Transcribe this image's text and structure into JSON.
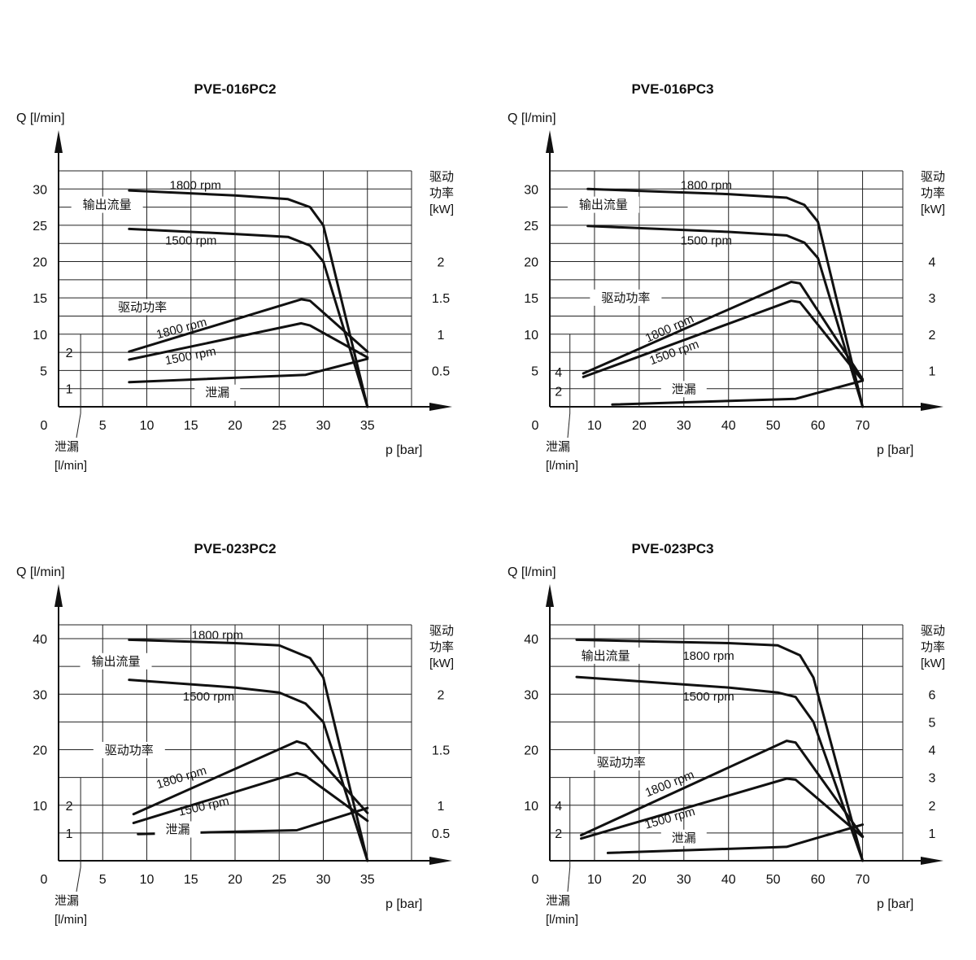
{
  "chart_data": [
    {
      "type": "line",
      "title": "PVE-016PC2",
      "ylabel": "Q [l/min]",
      "xlabel": "p [bar]",
      "right_label": [
        "驱动",
        "功率",
        "[kW]"
      ],
      "leak_label": [
        "泄漏",
        "[l/min]"
      ],
      "xlim": [
        0,
        40
      ],
      "ylim": [
        0,
        32.5
      ],
      "x_grid": [
        5,
        10,
        15,
        20,
        25,
        30,
        35,
        40
      ],
      "y_grid": [
        2.5,
        5,
        7.5,
        10,
        12.5,
        15,
        17.5,
        20,
        22.5,
        25,
        27.5,
        30,
        32.5
      ],
      "x_ticks": [
        {
          "v": 0,
          "t": "0"
        },
        {
          "v": 5,
          "t": "5"
        },
        {
          "v": 10,
          "t": "10"
        },
        {
          "v": 15,
          "t": "15"
        },
        {
          "v": 20,
          "t": "20"
        },
        {
          "v": 25,
          "t": "25"
        },
        {
          "v": 30,
          "t": "30"
        },
        {
          "v": 35,
          "t": "35"
        }
      ],
      "y_ticks": [
        {
          "v": 5,
          "t": "5"
        },
        {
          "v": 10,
          "t": "10"
        },
        {
          "v": 15,
          "t": "15"
        },
        {
          "v": 20,
          "t": "20"
        },
        {
          "v": 25,
          "t": "25"
        },
        {
          "v": 30,
          "t": "30"
        }
      ],
      "power_ticks": [
        {
          "v": 5,
          "t": "0.5"
        },
        {
          "v": 10,
          "t": "1"
        },
        {
          "v": 15,
          "t": "1.5"
        },
        {
          "v": 20,
          "t": "2"
        }
      ],
      "leak_ticks": [
        {
          "v": 2.5,
          "t": "1"
        },
        {
          "v": 7.5,
          "t": "2"
        }
      ],
      "leak_box": {
        "x": 2.5,
        "y": 10
      },
      "series": [
        {
          "name": "1800 rpm",
          "kind": "flow",
          "points": [
            [
              8,
              29.8
            ],
            [
              20,
              29.1
            ],
            [
              26,
              28.6
            ],
            [
              28.5,
              27.5
            ],
            [
              30,
              25
            ],
            [
              35,
              0
            ]
          ]
        },
        {
          "name": "1500 rpm",
          "kind": "flow",
          "points": [
            [
              8,
              24.5
            ],
            [
              20,
              23.8
            ],
            [
              26,
              23.4
            ],
            [
              28.5,
              22.2
            ],
            [
              30,
              20
            ],
            [
              35,
              0
            ]
          ]
        },
        {
          "name": "1800 rpm",
          "kind": "power",
          "points": [
            [
              8,
              7.6
            ],
            [
              27.5,
              14.8
            ],
            [
              28.5,
              14.6
            ],
            [
              35,
              7.6
            ]
          ]
        },
        {
          "name": "1500 rpm",
          "kind": "power",
          "points": [
            [
              8,
              6.5
            ],
            [
              27.5,
              11.5
            ],
            [
              28.5,
              11.2
            ],
            [
              35,
              6.8
            ]
          ]
        },
        {
          "name": "泄漏",
          "kind": "leak",
          "points": [
            [
              8,
              3.4
            ],
            [
              28,
              4.4
            ],
            [
              35,
              6.6
            ]
          ]
        }
      ],
      "annotations": [
        {
          "text": "1800 rpm",
          "x": 15.5,
          "y": 30.2,
          "rot": 0
        },
        {
          "text": "输出流量",
          "x": 5.5,
          "y": 27.5,
          "rot": 0,
          "mask": true
        },
        {
          "text": "1500 rpm",
          "x": 15,
          "y": 22.6,
          "rot": 0
        },
        {
          "text": "驱动功率",
          "x": 9.5,
          "y": 13.4,
          "rot": 0,
          "mask": true
        },
        {
          "text": "1800 rpm",
          "x": 14,
          "y": 10.5,
          "rot": -15
        },
        {
          "text": "1500 rpm",
          "x": 15,
          "y": 6.7,
          "rot": -11
        },
        {
          "text": "泄漏",
          "x": 18,
          "y": 1.6,
          "rot": 0,
          "mask": true
        }
      ]
    },
    {
      "type": "line",
      "title": "PVE-016PC3",
      "ylabel": "Q [l/min]",
      "xlabel": "p [bar]",
      "right_label": [
        "驱动",
        "功率",
        "[kW]"
      ],
      "leak_label": [
        "泄漏",
        "[l/min]"
      ],
      "xlim": [
        0,
        79
      ],
      "ylim": [
        0,
        32.5
      ],
      "x_grid": [
        10,
        20,
        30,
        40,
        50,
        60,
        70,
        79
      ],
      "y_grid": [
        2.5,
        5,
        7.5,
        10,
        12.5,
        15,
        17.5,
        20,
        22.5,
        25,
        27.5,
        30,
        32.5
      ],
      "x_ticks": [
        {
          "v": 0,
          "t": "0"
        },
        {
          "v": 10,
          "t": "10"
        },
        {
          "v": 20,
          "t": "20"
        },
        {
          "v": 30,
          "t": "30"
        },
        {
          "v": 40,
          "t": "40"
        },
        {
          "v": 50,
          "t": "50"
        },
        {
          "v": 60,
          "t": "60"
        },
        {
          "v": 70,
          "t": "70"
        }
      ],
      "y_ticks": [
        {
          "v": 5,
          "t": "5"
        },
        {
          "v": 10,
          "t": "10"
        },
        {
          "v": 15,
          "t": "15"
        },
        {
          "v": 20,
          "t": "20"
        },
        {
          "v": 25,
          "t": "25"
        },
        {
          "v": 30,
          "t": "30"
        }
      ],
      "power_ticks": [
        {
          "v": 5,
          "t": "1"
        },
        {
          "v": 10,
          "t": "2"
        },
        {
          "v": 15,
          "t": "3"
        },
        {
          "v": 20,
          "t": "4"
        }
      ],
      "leak_ticks": [
        {
          "v": 2.2,
          "t": "2"
        },
        {
          "v": 4.8,
          "t": "4"
        }
      ],
      "leak_box": {
        "x": 4.5,
        "y": 10
      },
      "series": [
        {
          "name": "1800 rpm",
          "kind": "flow",
          "points": [
            [
              8.5,
              30
            ],
            [
              40,
              29.3
            ],
            [
              53,
              28.8
            ],
            [
              57,
              27.8
            ],
            [
              60,
              25.5
            ],
            [
              70,
              0
            ]
          ]
        },
        {
          "name": "1500 rpm",
          "kind": "flow",
          "points": [
            [
              8.5,
              24.9
            ],
            [
              40,
              24.1
            ],
            [
              53,
              23.6
            ],
            [
              57,
              22.6
            ],
            [
              60,
              20.5
            ],
            [
              70,
              0
            ]
          ]
        },
        {
          "name": "1800 rpm",
          "kind": "power",
          "points": [
            [
              7.5,
              4.6
            ],
            [
              54,
              17.2
            ],
            [
              56,
              17.0
            ],
            [
              70,
              3.8
            ]
          ]
        },
        {
          "name": "1500 rpm",
          "kind": "power",
          "points": [
            [
              7.5,
              4.1
            ],
            [
              54,
              14.6
            ],
            [
              56,
              14.4
            ],
            [
              70,
              3.6
            ]
          ]
        },
        {
          "name": "泄漏",
          "kind": "leak",
          "points": [
            [
              14,
              0.3
            ],
            [
              55,
              1.1
            ],
            [
              70,
              3.6
            ]
          ]
        }
      ],
      "annotations": [
        {
          "text": "1800 rpm",
          "x": 35,
          "y": 30.2,
          "rot": 0
        },
        {
          "text": "输出流量",
          "x": 12,
          "y": 27.5,
          "rot": 0,
          "mask": true
        },
        {
          "text": "1500 rpm",
          "x": 35,
          "y": 22.6,
          "rot": 0
        },
        {
          "text": "驱动功率",
          "x": 17,
          "y": 14.7,
          "rot": 0,
          "mask": true
        },
        {
          "text": "1800 rpm",
          "x": 27,
          "y": 10.5,
          "rot": -24
        },
        {
          "text": "1500 rpm",
          "x": 28,
          "y": 7.2,
          "rot": -20
        },
        {
          "text": "泄漏",
          "x": 30,
          "y": 2.1,
          "rot": 0,
          "mask": true
        }
      ]
    },
    {
      "type": "line",
      "title": "PVE-023PC2",
      "ylabel": "Q [l/min]",
      "xlabel": "p [bar]",
      "right_label": [
        "驱动",
        "功率",
        "[kW]"
      ],
      "leak_label": [
        "泄漏",
        "[l/min]"
      ],
      "xlim": [
        0,
        40
      ],
      "ylim": [
        0,
        42.5
      ],
      "x_grid": [
        5,
        10,
        15,
        20,
        25,
        30,
        35,
        40
      ],
      "y_grid": [
        5,
        10,
        15,
        20,
        25,
        30,
        35,
        40,
        42.5
      ],
      "x_ticks": [
        {
          "v": 0,
          "t": "0"
        },
        {
          "v": 5,
          "t": "5"
        },
        {
          "v": 10,
          "t": "10"
        },
        {
          "v": 15,
          "t": "15"
        },
        {
          "v": 20,
          "t": "20"
        },
        {
          "v": 25,
          "t": "25"
        },
        {
          "v": 30,
          "t": "30"
        },
        {
          "v": 35,
          "t": "35"
        }
      ],
      "y_ticks": [
        {
          "v": 10,
          "t": "10"
        },
        {
          "v": 20,
          "t": "20"
        },
        {
          "v": 30,
          "t": "30"
        },
        {
          "v": 40,
          "t": "40"
        }
      ],
      "power_ticks": [
        {
          "v": 5,
          "t": "0.5"
        },
        {
          "v": 10,
          "t": "1"
        },
        {
          "v": 20,
          "t": "1.5"
        },
        {
          "v": 30,
          "t": "2"
        }
      ],
      "leak_ticks": [
        {
          "v": 5,
          "t": "1"
        },
        {
          "v": 10,
          "t": "2"
        }
      ],
      "leak_box": {
        "x": 2.5,
        "y": 15
      },
      "series": [
        {
          "name": "1800 rpm",
          "kind": "flow",
          "points": [
            [
              8,
              39.8
            ],
            [
              20,
              39.2
            ],
            [
              25,
              38.8
            ],
            [
              28.5,
              36.5
            ],
            [
              30,
              33
            ],
            [
              35,
              0
            ]
          ]
        },
        {
          "name": "1500 rpm",
          "kind": "flow",
          "points": [
            [
              8,
              32.6
            ],
            [
              20,
              31.2
            ],
            [
              25,
              30.3
            ],
            [
              28,
              28.3
            ],
            [
              30,
              25
            ],
            [
              35,
              0
            ]
          ]
        },
        {
          "name": "1800 rpm",
          "kind": "power",
          "points": [
            [
              8.5,
              8.4
            ],
            [
              27,
              21.5
            ],
            [
              28,
              21.0
            ],
            [
              35,
              8.6
            ]
          ]
        },
        {
          "name": "1500 rpm",
          "kind": "power",
          "points": [
            [
              8.5,
              6.8
            ],
            [
              27,
              15.8
            ],
            [
              28,
              15.3
            ],
            [
              35,
              7.2
            ]
          ]
        },
        {
          "name": "泄漏",
          "kind": "leak",
          "points": [
            [
              9,
              4.8
            ],
            [
              27,
              5.5
            ],
            [
              35,
              9.5
            ]
          ]
        }
      ],
      "annotations": [
        {
          "text": "1800 rpm",
          "x": 18,
          "y": 40.2,
          "rot": 0
        },
        {
          "text": "输出流量",
          "x": 6.5,
          "y": 35.5,
          "rot": 0,
          "mask": true
        },
        {
          "text": "1500 rpm",
          "x": 17,
          "y": 29.2,
          "rot": 0
        },
        {
          "text": "驱动功率",
          "x": 8,
          "y": 19.5,
          "rot": 0,
          "mask": true
        },
        {
          "text": "1800 rpm",
          "x": 14,
          "y": 14.6,
          "rot": -17
        },
        {
          "text": "1500 rpm",
          "x": 16.5,
          "y": 9.4,
          "rot": -13
        },
        {
          "text": "泄漏",
          "x": 13.5,
          "y": 5.2,
          "rot": 0,
          "mask": true
        }
      ]
    },
    {
      "type": "line",
      "title": "PVE-023PC3",
      "ylabel": "Q [l/min]",
      "xlabel": "p [bar]",
      "right_label": [
        "驱动",
        "功率",
        "[kW]"
      ],
      "leak_label": [
        "泄漏",
        "[l/min]"
      ],
      "xlim": [
        0,
        79
      ],
      "ylim": [
        0,
        42.5
      ],
      "x_grid": [
        10,
        20,
        30,
        40,
        50,
        60,
        70,
        79
      ],
      "y_grid": [
        5,
        10,
        15,
        20,
        25,
        30,
        35,
        40,
        42.5
      ],
      "x_ticks": [
        {
          "v": 0,
          "t": "0"
        },
        {
          "v": 10,
          "t": "10"
        },
        {
          "v": 20,
          "t": "20"
        },
        {
          "v": 30,
          "t": "30"
        },
        {
          "v": 40,
          "t": "40"
        },
        {
          "v": 50,
          "t": "50"
        },
        {
          "v": 60,
          "t": "60"
        },
        {
          "v": 70,
          "t": "70"
        }
      ],
      "y_ticks": [
        {
          "v": 10,
          "t": "10"
        },
        {
          "v": 20,
          "t": "20"
        },
        {
          "v": 30,
          "t": "30"
        },
        {
          "v": 40,
          "t": "40"
        }
      ],
      "power_ticks": [
        {
          "v": 5,
          "t": "1"
        },
        {
          "v": 10,
          "t": "2"
        },
        {
          "v": 15,
          "t": "3"
        },
        {
          "v": 20,
          "t": "4"
        },
        {
          "v": 25,
          "t": "5"
        },
        {
          "v": 30,
          "t": "6"
        }
      ],
      "leak_ticks": [
        {
          "v": 5,
          "t": "2"
        },
        {
          "v": 10,
          "t": "4"
        }
      ],
      "leak_box": {
        "x": 4.5,
        "y": 15
      },
      "series": [
        {
          "name": "1800 rpm",
          "kind": "flow",
          "points": [
            [
              6,
              39.8
            ],
            [
              40,
              39.2
            ],
            [
              51,
              38.8
            ],
            [
              56,
              37
            ],
            [
              59,
              33
            ],
            [
              70,
              0
            ]
          ]
        },
        {
          "name": "1500 rpm",
          "kind": "flow",
          "points": [
            [
              6,
              33.1
            ],
            [
              40,
              31.2
            ],
            [
              51,
              30.3
            ],
            [
              55,
              29.5
            ],
            [
              59,
              25
            ],
            [
              70,
              0
            ]
          ]
        },
        {
          "name": "1800 rpm",
          "kind": "power",
          "points": [
            [
              7,
              4.6
            ],
            [
              53,
              21.6
            ],
            [
              55,
              21.3
            ],
            [
              70,
              4.4
            ]
          ]
        },
        {
          "name": "1500 rpm",
          "kind": "power",
          "points": [
            [
              7,
              4.0
            ],
            [
              53,
              14.8
            ],
            [
              55,
              14.6
            ],
            [
              70,
              4.3
            ]
          ]
        },
        {
          "name": "泄漏",
          "kind": "leak",
          "points": [
            [
              13,
              1.4
            ],
            [
              53,
              2.5
            ],
            [
              70,
              6.5
            ]
          ]
        }
      ],
      "annotations": [
        {
          "text": "输出流量",
          "x": 12.5,
          "y": 36.5,
          "rot": 0,
          "mask": true
        },
        {
          "text": "1800 rpm",
          "x": 35.5,
          "y": 36.5,
          "rot": 0
        },
        {
          "text": "1500 rpm",
          "x": 35.5,
          "y": 29.2,
          "rot": 0
        },
        {
          "text": "驱动功率",
          "x": 16,
          "y": 17.3,
          "rot": 0,
          "mask": true
        },
        {
          "text": "1800 rpm",
          "x": 27,
          "y": 13.5,
          "rot": -22
        },
        {
          "text": "1500 rpm",
          "x": 27,
          "y": 7.3,
          "rot": -16
        },
        {
          "text": "泄漏",
          "x": 30,
          "y": 3.7,
          "rot": 0,
          "mask": true
        }
      ]
    }
  ]
}
